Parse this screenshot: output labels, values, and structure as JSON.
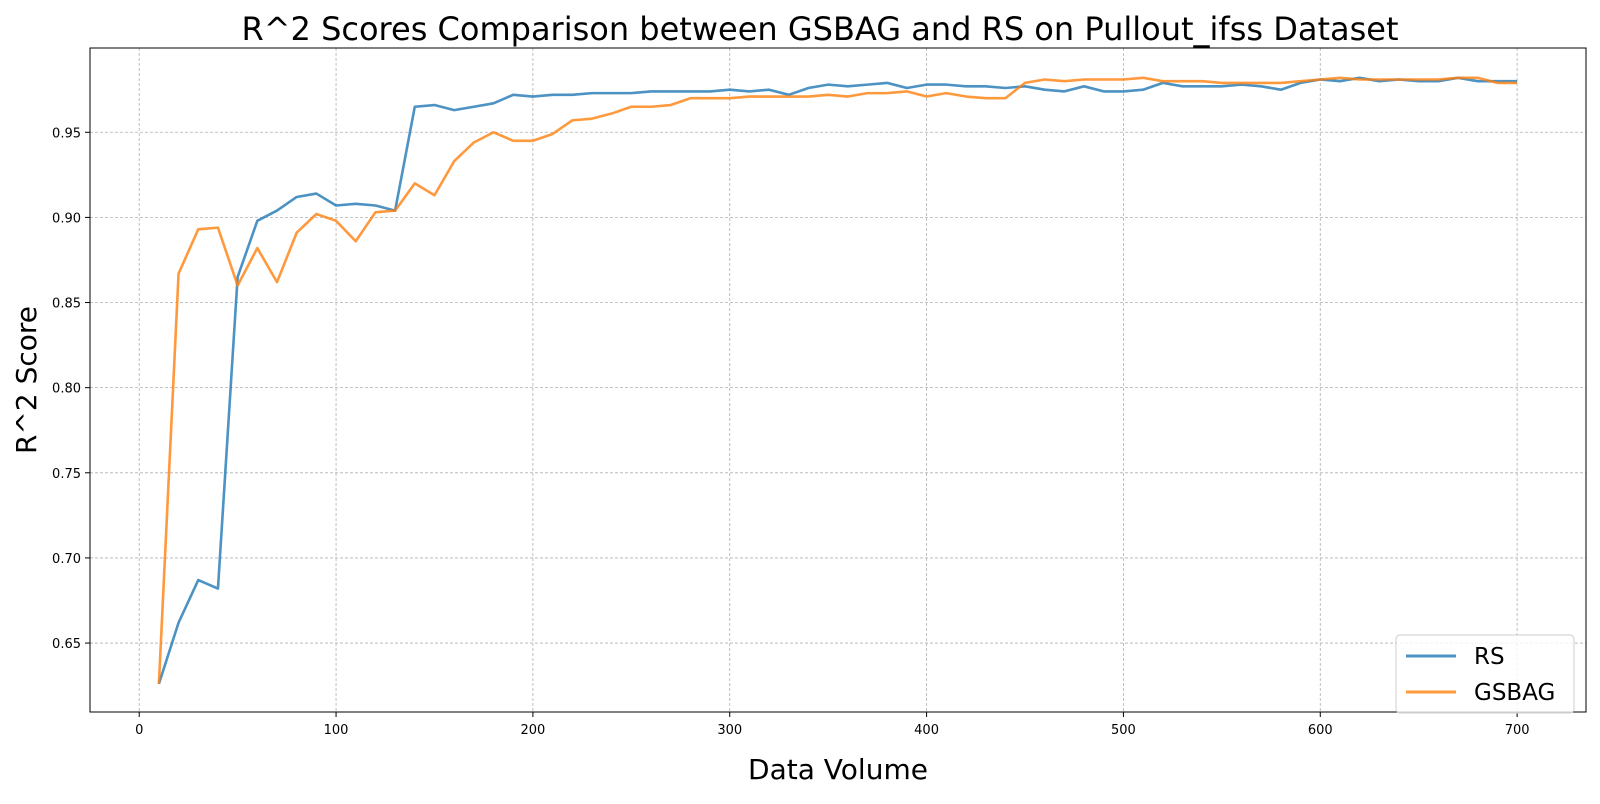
{
  "chart_data": {
    "type": "line",
    "title": "R^2 Scores Comparison between GSBAG and RS on Pullout_ifss Dataset",
    "xlabel": "Data Volume",
    "ylabel": "R^2 Score",
    "xlim": [
      -25,
      735
    ],
    "ylim": [
      0.6095,
      0.9995
    ],
    "x_ticks": [
      0,
      100,
      200,
      300,
      400,
      500,
      600,
      700
    ],
    "y_ticks": [
      0.65,
      0.7,
      0.75,
      0.8,
      0.85,
      0.9,
      0.95
    ],
    "y_tick_labels": [
      "0.65",
      "0.70",
      "0.75",
      "0.80",
      "0.85",
      "0.90",
      "0.95"
    ],
    "grid": true,
    "legend_position": "lower-right",
    "x": [
      10,
      20,
      30,
      40,
      50,
      60,
      70,
      80,
      90,
      100,
      110,
      120,
      130,
      140,
      150,
      160,
      170,
      180,
      190,
      200,
      210,
      220,
      230,
      240,
      250,
      260,
      270,
      280,
      290,
      300,
      310,
      320,
      330,
      340,
      350,
      360,
      370,
      380,
      390,
      400,
      410,
      420,
      430,
      440,
      450,
      460,
      470,
      480,
      490,
      500,
      510,
      520,
      530,
      540,
      550,
      560,
      570,
      580,
      590,
      600,
      610,
      620,
      630,
      640,
      650,
      660,
      670,
      680,
      690,
      700
    ],
    "series": [
      {
        "name": "RS",
        "color": "#1f77b4",
        "values": [
          0.626,
          0.662,
          0.687,
          0.682,
          0.865,
          0.898,
          0.904,
          0.912,
          0.914,
          0.907,
          0.908,
          0.907,
          0.904,
          0.965,
          0.966,
          0.963,
          0.965,
          0.967,
          0.972,
          0.971,
          0.972,
          0.972,
          0.973,
          0.973,
          0.973,
          0.974,
          0.974,
          0.974,
          0.974,
          0.975,
          0.974,
          0.975,
          0.972,
          0.976,
          0.978,
          0.977,
          0.978,
          0.979,
          0.976,
          0.978,
          0.978,
          0.977,
          0.977,
          0.976,
          0.977,
          0.975,
          0.974,
          0.977,
          0.974,
          0.974,
          0.975,
          0.979,
          0.977,
          0.977,
          0.977,
          0.978,
          0.977,
          0.975,
          0.979,
          0.981,
          0.98,
          0.982,
          0.98,
          0.981,
          0.98,
          0.98,
          0.982,
          0.98,
          0.98,
          0.98
        ]
      },
      {
        "name": "GSBAG",
        "color": "#ff7f0e",
        "values": [
          0.626,
          0.867,
          0.893,
          0.894,
          0.86,
          0.882,
          0.862,
          0.891,
          0.902,
          0.898,
          0.886,
          0.903,
          0.904,
          0.92,
          0.913,
          0.933,
          0.944,
          0.95,
          0.945,
          0.945,
          0.949,
          0.957,
          0.958,
          0.961,
          0.965,
          0.965,
          0.966,
          0.97,
          0.97,
          0.97,
          0.971,
          0.971,
          0.971,
          0.971,
          0.972,
          0.971,
          0.973,
          0.973,
          0.974,
          0.971,
          0.973,
          0.971,
          0.97,
          0.97,
          0.979,
          0.981,
          0.98,
          0.981,
          0.981,
          0.981,
          0.982,
          0.98,
          0.98,
          0.98,
          0.979,
          0.979,
          0.979,
          0.979,
          0.98,
          0.981,
          0.982,
          0.981,
          0.981,
          0.981,
          0.981,
          0.981,
          0.982,
          0.982,
          0.979,
          0.979
        ]
      }
    ]
  }
}
